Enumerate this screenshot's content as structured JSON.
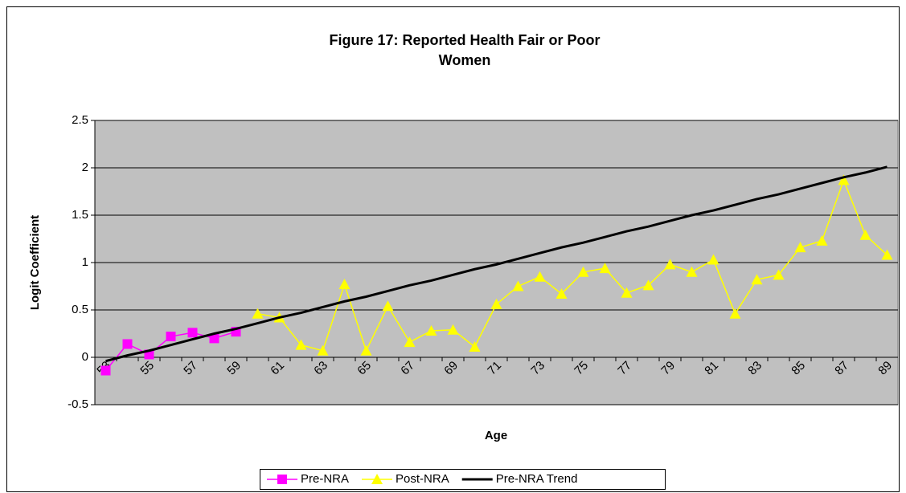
{
  "chart_data": {
    "type": "line",
    "title": "Figure 17: Reported Health Fair or Poor",
    "subtitle": "Women",
    "x_label": "Age",
    "y_label": "Logit Coefficient",
    "categories": [
      "53",
      null,
      "55",
      null,
      "57",
      null,
      "59",
      null,
      "61",
      null,
      "63",
      null,
      "65",
      null,
      "67",
      null,
      "69",
      null,
      "71",
      null,
      "73",
      null,
      "75",
      null,
      "77",
      null,
      "79",
      null,
      "81",
      null,
      "83",
      null,
      "85",
      null,
      "87",
      null,
      "89"
    ],
    "series": [
      {
        "name": "Pre-NRA",
        "color": "#ff00ff",
        "marker": "square",
        "values": [
          -0.14,
          0.14,
          0.03,
          0.22,
          0.26,
          0.2,
          0.27,
          null,
          null,
          null,
          null,
          null,
          null,
          null,
          null,
          null,
          null,
          null,
          null,
          null,
          null,
          null,
          null,
          null,
          null,
          null,
          null,
          null,
          null,
          null,
          null,
          null,
          null,
          null,
          null,
          null,
          null
        ]
      },
      {
        "name": "Post-NRA",
        "color": "#ffff00",
        "marker": "triangle",
        "values": [
          null,
          null,
          null,
          null,
          null,
          null,
          null,
          0.46,
          0.42,
          0.13,
          0.07,
          0.77,
          0.07,
          0.54,
          0.16,
          0.28,
          0.29,
          0.11,
          0.56,
          0.75,
          0.85,
          0.67,
          0.9,
          0.94,
          0.68,
          0.76,
          0.98,
          0.9,
          1.03,
          0.46,
          0.82,
          0.87,
          1.16,
          1.23,
          1.87,
          1.29,
          1.08
        ]
      },
      {
        "name": "Pre-NRA Trend",
        "color": "#000000",
        "marker": "none",
        "values": [
          -0.04,
          0.02,
          0.07,
          0.13,
          0.19,
          0.25,
          0.3,
          0.36,
          0.42,
          0.47,
          0.53,
          0.59,
          0.64,
          0.7,
          0.76,
          0.81,
          0.87,
          0.93,
          0.98,
          1.04,
          1.1,
          1.16,
          1.21,
          1.27,
          1.33,
          1.38,
          1.44,
          1.5,
          1.55,
          1.61,
          1.67,
          1.72,
          1.78,
          1.84,
          1.9,
          1.95,
          2.01
        ]
      }
    ],
    "ylim": [
      -0.5,
      2.5
    ],
    "yticks": [
      -0.5,
      0,
      0.5,
      1,
      1.5,
      2,
      2.5
    ],
    "grid": true,
    "plot_background": "#c0c0c0",
    "legend": "bottom"
  }
}
